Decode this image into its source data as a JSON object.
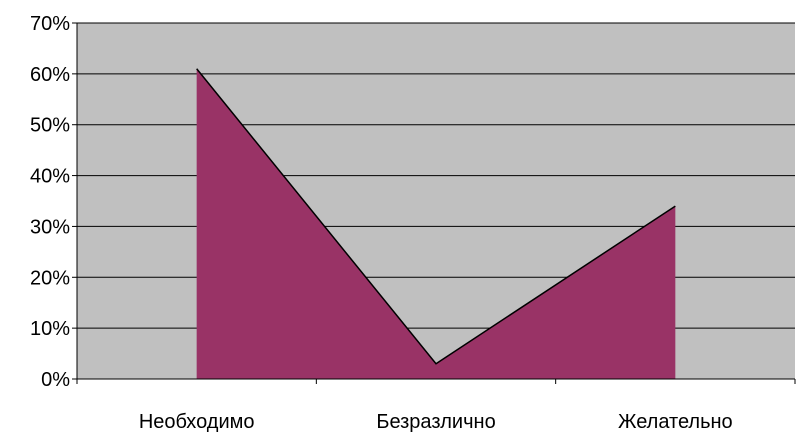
{
  "chart_data": {
    "type": "area",
    "categories": [
      "Необходимо",
      "Безразлично",
      "Желательно"
    ],
    "values": [
      61,
      3,
      34
    ],
    "y_unit": "%",
    "yticks": [
      "0%",
      "10%",
      "20%",
      "30%",
      "40%",
      "50%",
      "60%",
      "70%"
    ],
    "ylim": [
      0,
      70
    ],
    "ystep": 10,
    "grid": true,
    "legend": "none",
    "colors": {
      "plot_background": "#c0c0c0",
      "area_fill": "#993366",
      "area_stroke": "#000000",
      "gridline": "#000000"
    }
  }
}
